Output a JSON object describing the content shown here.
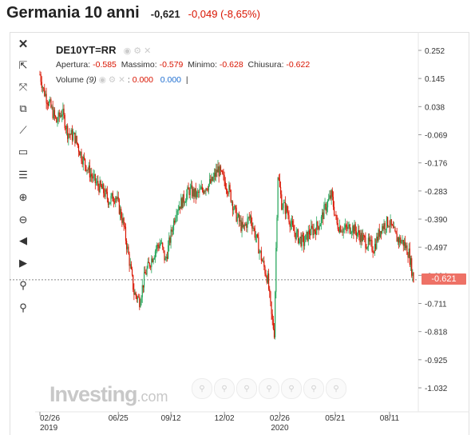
{
  "header": {
    "title": "Germania 10 anni",
    "last": "-0,621",
    "change": "-0,049 (-8,65%)"
  },
  "colors": {
    "down": "#d91400",
    "up": "#26a65b",
    "last_price_tag": "#ee7166"
  },
  "toolbar": {
    "items": [
      {
        "name": "close-icon",
        "glyph": "✕"
      },
      {
        "name": "cursor-select-icon",
        "glyph": "⇱"
      },
      {
        "name": "scale-icon",
        "glyph": "⤧"
      },
      {
        "name": "copy-icon",
        "glyph": "⧉"
      },
      {
        "name": "trendline-icon",
        "glyph": "⟋"
      },
      {
        "name": "rectangle-icon",
        "glyph": "▭"
      },
      {
        "name": "fibonacci-icon",
        "glyph": "☰"
      },
      {
        "name": "zoom-in-icon",
        "glyph": "⊕"
      },
      {
        "name": "zoom-out-icon",
        "glyph": "⊖"
      },
      {
        "name": "scroll-left-icon",
        "glyph": "◀"
      },
      {
        "name": "scroll-right-icon",
        "glyph": "▶"
      },
      {
        "name": "magnet-icon",
        "glyph": "⚲"
      },
      {
        "name": "reset-icon",
        "glyph": "⚲"
      }
    ]
  },
  "legend": {
    "symbol": "DE10YT=RR",
    "open_label": "Apertura:",
    "open": "-0.585",
    "high_label": "Massimo:",
    "high": "-0.579",
    "low_label": "Minimo:",
    "low": "-0.628",
    "close_label": "Chiusura:",
    "close": "-0.622",
    "volume_label": "Volume",
    "volume_period": "(9)",
    "volume_value1": "0.000",
    "volume_value2": "0.000"
  },
  "watermark": {
    "brand": "Investing",
    "suffix": ".com"
  },
  "price_tag": "-0.621",
  "zoom_buttons": [
    "1",
    "2",
    "3",
    "4",
    "5",
    "6",
    "7"
  ],
  "chart_data": {
    "type": "candlestick",
    "y_ticks": [
      "0.252",
      "0.145",
      "0.038",
      "-0.069",
      "-0.176",
      "-0.283",
      "-0.390",
      "-0.497",
      "-0.604",
      "-0.711",
      "-0.818",
      "-0.925",
      "-1.032"
    ],
    "ylim": [
      -1.032,
      0.252
    ],
    "x_ticks": [
      {
        "label": "02/26",
        "sub": "2019",
        "pos": 0
      },
      {
        "label": "06/25",
        "sub": "",
        "pos": 85
      },
      {
        "label": "09/12",
        "sub": "",
        "pos": 142
      },
      {
        "label": "12/02",
        "sub": "",
        "pos": 200
      },
      {
        "label": "02/26",
        "sub": "2020",
        "pos": 260
      },
      {
        "label": "05/21",
        "sub": "",
        "pos": 320
      },
      {
        "label": "08/11",
        "sub": "",
        "pos": 379
      }
    ],
    "series_length": 405,
    "last_value": -0.621,
    "close_trace": [
      [
        0,
        0.16
      ],
      [
        4,
        0.1
      ],
      [
        10,
        0.05
      ],
      [
        18,
        -0.02
      ],
      [
        24,
        0.02
      ],
      [
        30,
        -0.06
      ],
      [
        38,
        -0.08
      ],
      [
        45,
        -0.15
      ],
      [
        52,
        -0.2
      ],
      [
        60,
        -0.25
      ],
      [
        68,
        -0.28
      ],
      [
        75,
        -0.32
      ],
      [
        82,
        -0.3
      ],
      [
        90,
        -0.4
      ],
      [
        97,
        -0.55
      ],
      [
        102,
        -0.67
      ],
      [
        108,
        -0.7
      ],
      [
        114,
        -0.6
      ],
      [
        120,
        -0.55
      ],
      [
        126,
        -0.5
      ],
      [
        131,
        -0.48
      ],
      [
        136,
        -0.55
      ],
      [
        142,
        -0.45
      ],
      [
        148,
        -0.35
      ],
      [
        155,
        -0.32
      ],
      [
        162,
        -0.28
      ],
      [
        170,
        -0.3
      ],
      [
        178,
        -0.27
      ],
      [
        186,
        -0.25
      ],
      [
        193,
        -0.2
      ],
      [
        199,
        -0.24
      ],
      [
        205,
        -0.28
      ],
      [
        212,
        -0.37
      ],
      [
        220,
        -0.43
      ],
      [
        228,
        -0.38
      ],
      [
        235,
        -0.47
      ],
      [
        241,
        -0.55
      ],
      [
        247,
        -0.62
      ],
      [
        251,
        -0.76
      ],
      [
        254,
        -0.82
      ],
      [
        256,
        -0.5
      ],
      [
        258,
        -0.22
      ],
      [
        262,
        -0.33
      ],
      [
        268,
        -0.36
      ],
      [
        274,
        -0.43
      ],
      [
        280,
        -0.46
      ],
      [
        286,
        -0.48
      ],
      [
        292,
        -0.44
      ],
      [
        298,
        -0.43
      ],
      [
        304,
        -0.4
      ],
      [
        310,
        -0.34
      ],
      [
        316,
        -0.3
      ],
      [
        322,
        -0.41
      ],
      [
        330,
        -0.43
      ],
      [
        338,
        -0.42
      ],
      [
        346,
        -0.45
      ],
      [
        354,
        -0.48
      ],
      [
        362,
        -0.5
      ],
      [
        370,
        -0.42
      ],
      [
        378,
        -0.4
      ],
      [
        386,
        -0.46
      ],
      [
        394,
        -0.48
      ],
      [
        400,
        -0.52
      ],
      [
        405,
        -0.621
      ]
    ]
  }
}
